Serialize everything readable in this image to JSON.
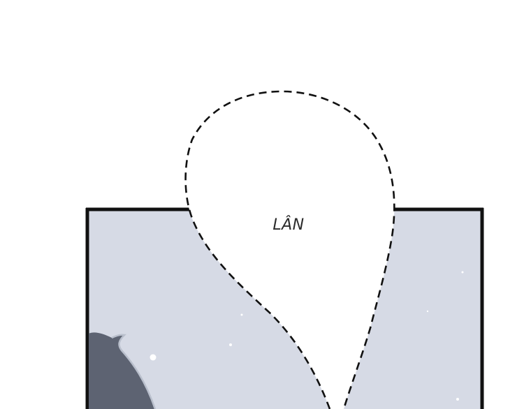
{
  "speech_bubble": {
    "text": "LÂN"
  },
  "colors": {
    "page_background": "#ffffff",
    "panel_fill": "#d6dae5",
    "panel_border": "#111111",
    "bubble_fill": "#ffffff",
    "bubble_outline": "#111111",
    "hair": "#5d6372",
    "hair_highlight": "#b9bfcc",
    "snow": "#ffffff"
  }
}
